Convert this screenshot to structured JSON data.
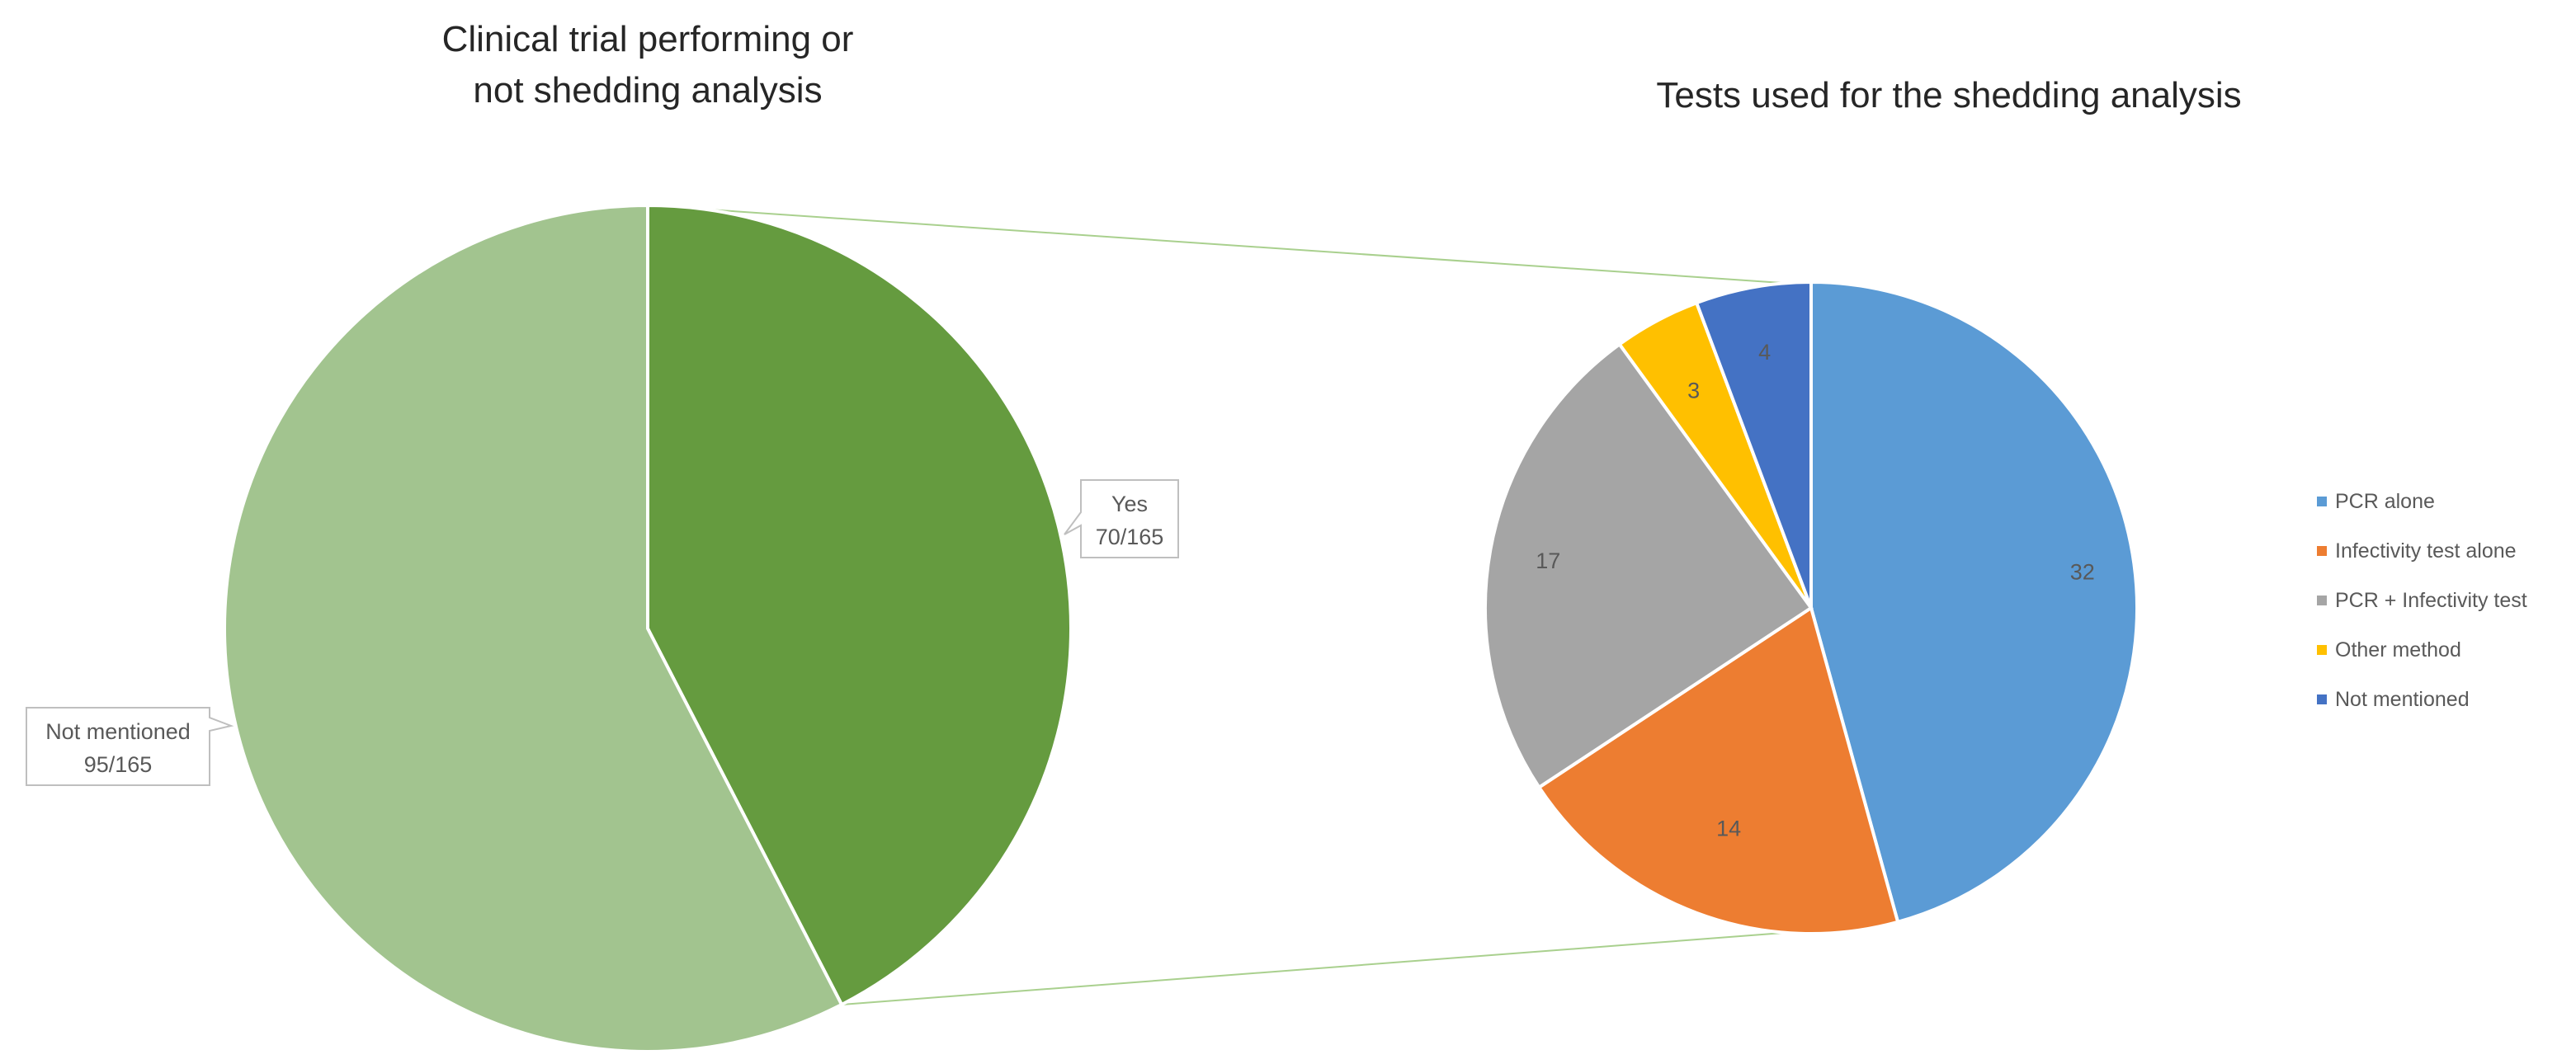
{
  "chart_data": [
    {
      "type": "pie",
      "title_lines": [
        "Clinical trial performing or",
        "not shedding analysis"
      ],
      "slices": [
        {
          "label": "Yes",
          "value": 70,
          "display": "70/165",
          "color": "#659B3F"
        },
        {
          "label": "Not mentioned",
          "value": 95,
          "display": "95/165",
          "color": "#A2C48F"
        }
      ]
    },
    {
      "type": "pie",
      "title": "Tests used for the shedding analysis",
      "slices": [
        {
          "label": "PCR alone",
          "value": 32,
          "color": "#5B9BD5"
        },
        {
          "label": "Infectivity test alone",
          "value": 14,
          "color": "#ED7D31"
        },
        {
          "label": "PCR + Infectivity test",
          "value": 17,
          "color": "#A5A5A5"
        },
        {
          "label": "Other method",
          "value": 3,
          "color": "#FFC000"
        },
        {
          "label": "Not mentioned",
          "value": 4,
          "color": "#4472C4"
        }
      ],
      "legend_position": "right"
    }
  ]
}
